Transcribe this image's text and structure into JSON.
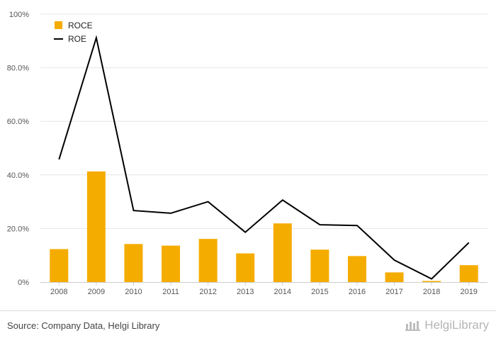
{
  "chart_data": {
    "type": "bar",
    "categories": [
      "2008",
      "2009",
      "2010",
      "2011",
      "2012",
      "2013",
      "2014",
      "2015",
      "2016",
      "2017",
      "2018",
      "2019"
    ],
    "series": [
      {
        "name": "ROCE",
        "type": "bar",
        "color": "#f5ac00",
        "values": [
          12.3,
          41.3,
          14.2,
          13.6,
          16.1,
          10.7,
          21.9,
          12.1,
          9.7,
          3.6,
          0.4,
          6.3
        ]
      },
      {
        "name": "ROE",
        "type": "line",
        "color": "#000000",
        "values": [
          45.8,
          91.2,
          26.7,
          25.7,
          30.0,
          18.6,
          30.6,
          21.4,
          21.1,
          8.2,
          1.2,
          14.7
        ]
      }
    ],
    "yticks": [
      "0%",
      "20.0%",
      "40.0%",
      "60.0%",
      "80.0%",
      "100%"
    ],
    "ylim": [
      0,
      100
    ],
    "grid": true,
    "legend": "top-left"
  },
  "footer": {
    "source": "Source: Company Data, Helgi Library",
    "brand": "HelgiLibrary"
  }
}
